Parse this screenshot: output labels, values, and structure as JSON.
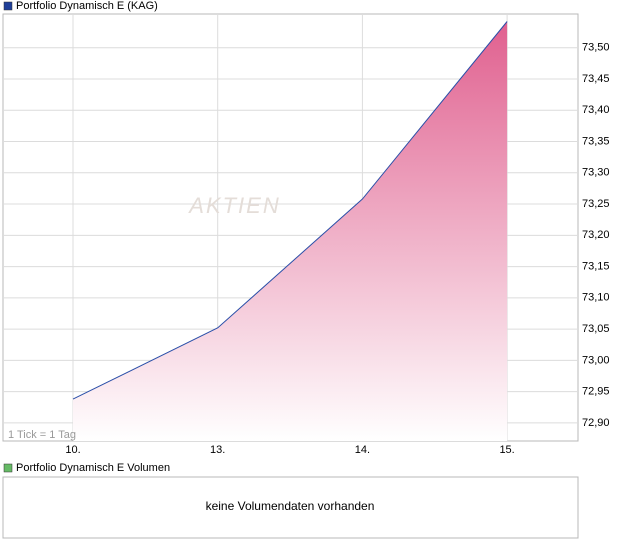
{
  "chart_data": {
    "type": "area",
    "series": [
      {
        "name": "Portfolio Dynamisch E (KAG)",
        "color": "#2a4fa8",
        "values": [
          72.938,
          73.052,
          73.258,
          73.542
        ]
      }
    ],
    "categories": [
      "10.",
      "13.",
      "14.",
      "15."
    ],
    "fill_color": "#e0608f",
    "ylim": [
      72.871,
      73.554
    ],
    "yticks": [
      {
        "value": 72.9,
        "label": "72,90"
      },
      {
        "value": 72.95,
        "label": "72,95"
      },
      {
        "value": 73.0,
        "label": "73,00"
      },
      {
        "value": 73.05,
        "label": "73,05"
      },
      {
        "value": 73.1,
        "label": "73,10"
      },
      {
        "value": 73.15,
        "label": "73,15"
      },
      {
        "value": 73.2,
        "label": "73,20"
      },
      {
        "value": 73.25,
        "label": "73,25"
      },
      {
        "value": 73.3,
        "label": "73,30"
      },
      {
        "value": 73.35,
        "label": "73,35"
      },
      {
        "value": 73.4,
        "label": "73,40"
      },
      {
        "value": 73.45,
        "label": "73,45"
      },
      {
        "value": 73.5,
        "label": "73,50"
      }
    ],
    "grid": true,
    "note": "1 Tick = 1 Tag",
    "watermark": "AKTIEN"
  },
  "volume_panel": {
    "legend": "Portfolio Dynamisch E Volumen",
    "color": "#66bb66",
    "message": "keine Volumendaten vorhanden"
  }
}
